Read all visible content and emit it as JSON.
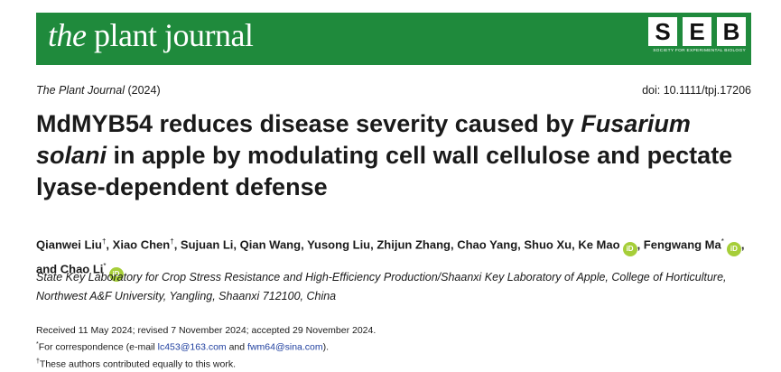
{
  "banner": {
    "journal_the": "the",
    "journal_rest": "plant journal",
    "seb_letters": [
      "S",
      "E",
      "B"
    ],
    "seb_tagline": "SOCIETY FOR EXPERIMENTAL BIOLOGY",
    "background_color": "#1f8a3c"
  },
  "meta": {
    "journal": "The Plant Journal",
    "year": "(2024)",
    "doi": "doi: 10.1111/tpj.17206"
  },
  "title": {
    "part1": "MdMYB54 reduces disease severity caused by ",
    "species": "Fusarium solani",
    "part2": " in apple by modulating cell wall cellulose and pectate lyase-dependent defense"
  },
  "authors": [
    {
      "name": "Qianwei Liu",
      "mark": "†",
      "orcid": false
    },
    {
      "name": "Xiao Chen",
      "mark": "†",
      "orcid": false
    },
    {
      "name": "Sujuan Li",
      "mark": "",
      "orcid": false
    },
    {
      "name": "Qian Wang",
      "mark": "",
      "orcid": false
    },
    {
      "name": "Yusong Liu",
      "mark": "",
      "orcid": false
    },
    {
      "name": "Zhijun Zhang",
      "mark": "",
      "orcid": false
    },
    {
      "name": "Chao Yang",
      "mark": "",
      "orcid": false
    },
    {
      "name": "Shuo Xu",
      "mark": "",
      "orcid": false
    },
    {
      "name": "Ke Mao",
      "mark": "",
      "orcid": true
    },
    {
      "name": "Fengwang Ma",
      "mark": "*",
      "orcid": true
    },
    {
      "name": "Chao Li",
      "mark": "*",
      "orcid": true
    }
  ],
  "author_and": "and",
  "orcid_label": "iD",
  "affiliation": "State Key Laboratory for Crop Stress Resistance and High-Efficiency Production/Shaanxi Key Laboratory of Apple, College of Horticulture, Northwest A&F University, Yangling, Shaanxi 712100, China",
  "notes": {
    "received": "Received 11 May 2024; revised 7 November 2024; accepted 29 November 2024.",
    "corr_mark": "*",
    "corr_prefix": "For correspondence (e-mail ",
    "email1": "lc453@163.com",
    "corr_and": " and ",
    "email2": "fwm64@sina.com",
    "corr_suffix": ").",
    "equal_mark": "†",
    "equal": "These authors contributed equally to this work."
  }
}
